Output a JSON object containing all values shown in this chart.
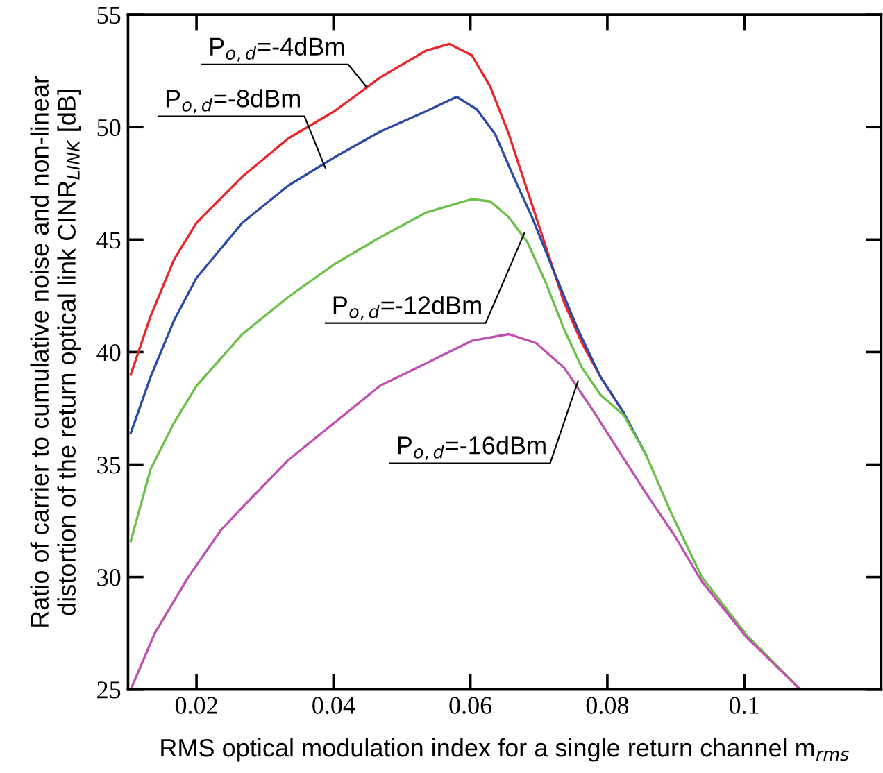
{
  "chart_data": {
    "type": "line",
    "xlabel": "RMS optical modulation index for a single return channel m$_{rms}$",
    "ylabel": "Ratio of carrier to cumulative noise and non-linear\ndistortion of the return optical link CINR$_{LINK}$ [dB]",
    "xlim": [
      0.01,
      0.12
    ],
    "ylim": [
      25,
      55
    ],
    "xticks": [
      0.02,
      0.04,
      0.06,
      0.08,
      0.1
    ],
    "yticks": [
      25,
      30,
      35,
      40,
      45,
      50,
      55
    ],
    "grid": false,
    "legend": false,
    "marker": "none",
    "line_style": "solid",
    "series": [
      {
        "color": "#e8262a",
        "x": [
          0.0104,
          0.0133,
          0.0167,
          0.02,
          0.0267,
          0.0334,
          0.0401,
          0.0468,
          0.0535,
          0.0569,
          0.0602,
          0.0629,
          0.0656,
          0.0683,
          0.071,
          0.0737,
          0.0763,
          0.079,
          0.0824
        ],
        "values": [
          39.0,
          41.6,
          44.1,
          45.75,
          47.8,
          49.5,
          50.7,
          52.2,
          53.4,
          53.7,
          53.2,
          51.8,
          49.7,
          47.2,
          44.7,
          42.2,
          40.4,
          38.9,
          37.3
        ]
      },
      {
        "color": "#2a4aa8",
        "x": [
          0.0104,
          0.0133,
          0.0167,
          0.02,
          0.0267,
          0.0334,
          0.0401,
          0.0468,
          0.0535,
          0.058,
          0.0609,
          0.0636,
          0.0663,
          0.069,
          0.0723,
          0.0757,
          0.079,
          0.0824,
          0.0857
        ],
        "values": [
          36.4,
          38.9,
          41.4,
          43.3,
          45.75,
          47.4,
          48.65,
          49.8,
          50.7,
          51.35,
          50.8,
          49.7,
          47.8,
          46.0,
          43.5,
          41.0,
          38.9,
          37.3,
          35.4
        ]
      },
      {
        "color": "#6cc04a",
        "x": [
          0.0104,
          0.0133,
          0.0167,
          0.02,
          0.0267,
          0.0334,
          0.0401,
          0.0468,
          0.0535,
          0.0602,
          0.0629,
          0.0656,
          0.0683,
          0.071,
          0.0737,
          0.0763,
          0.079,
          0.0824,
          0.0857,
          0.0894,
          0.0938,
          0.1004,
          0.1082
        ],
        "values": [
          31.6,
          34.8,
          36.85,
          38.5,
          40.8,
          42.45,
          43.9,
          45.1,
          46.2,
          46.8,
          46.7,
          46.0,
          44.9,
          43.1,
          41.0,
          39.3,
          38.1,
          37.2,
          35.4,
          32.8,
          30.0,
          27.4,
          25.0
        ]
      },
      {
        "color": "#c050b0",
        "x": [
          0.0104,
          0.0139,
          0.0188,
          0.0236,
          0.0267,
          0.0334,
          0.0401,
          0.0468,
          0.0535,
          0.0602,
          0.0656,
          0.0696,
          0.0737,
          0.0777,
          0.0817,
          0.0857,
          0.0897,
          0.0938,
          0.1004,
          0.1082
        ],
        "values": [
          25.0,
          27.5,
          30.0,
          32.1,
          33.1,
          35.2,
          36.85,
          38.5,
          39.5,
          40.5,
          40.8,
          40.4,
          39.3,
          37.5,
          35.6,
          33.7,
          31.9,
          29.8,
          27.3,
          25.0
        ]
      }
    ],
    "annotations": [
      {
        "text": "P$_{o,d}$=-4dBm",
        "x": 0.0448,
        "y": 51.8
      },
      {
        "text": "P$_{o,d}$=-8dBm",
        "x": 0.0388,
        "y": 48.2
      },
      {
        "text": "P$_{o,d}$=-12dBm",
        "x": 0.0679,
        "y": 45.3
      },
      {
        "text": "P$_{o,d}$=-16dBm",
        "x": 0.0757,
        "y": 38.7
      }
    ]
  }
}
